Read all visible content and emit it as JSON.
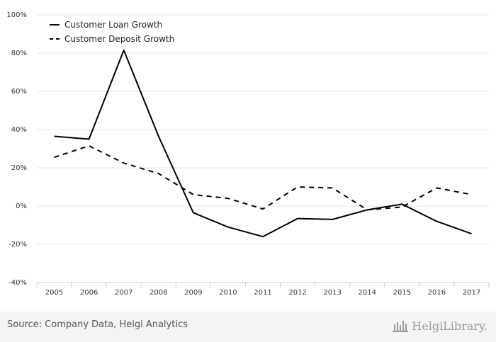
{
  "chart_data": {
    "type": "line",
    "x": [
      "2005",
      "2006",
      "2007",
      "2008",
      "2009",
      "2010",
      "2011",
      "2012",
      "2013",
      "2014",
      "2015",
      "2016",
      "2017"
    ],
    "series": [
      {
        "name": "Customer Loan Growth",
        "style": "solid",
        "values": [
          36.5,
          35.0,
          81.5,
          36.5,
          -3.5,
          -11.0,
          -16.0,
          -6.5,
          -7.0,
          -2.0,
          1.0,
          -8.0,
          -14.5
        ]
      },
      {
        "name": "Customer Deposit Growth",
        "style": "dashed",
        "values": [
          25.5,
          31.5,
          22.5,
          17.0,
          6.0,
          4.0,
          -1.5,
          10.0,
          9.5,
          -2.0,
          -0.5,
          9.5,
          6.0
        ]
      }
    ],
    "ylim": [
      -40,
      100
    ],
    "yticks": [
      -40,
      -20,
      0,
      20,
      40,
      60,
      80,
      100
    ],
    "ytick_format": "%",
    "grid": true,
    "legend_position": "top-left",
    "line_color": "#000000"
  },
  "footer": {
    "source": "Source: Company Data, Helgi Analytics",
    "brand": "HelgiLibrary."
  }
}
